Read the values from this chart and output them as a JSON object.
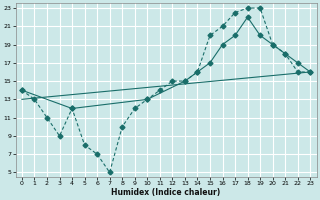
{
  "xlabel": "Humidex (Indice chaleur)",
  "bg_color": "#cce8e8",
  "grid_color": "#ffffff",
  "line_color": "#1a6e6a",
  "xlim": [
    -0.5,
    23.5
  ],
  "ylim": [
    4.5,
    23.5
  ],
  "xticks": [
    0,
    1,
    2,
    3,
    4,
    5,
    6,
    7,
    8,
    9,
    10,
    11,
    12,
    13,
    14,
    15,
    16,
    17,
    18,
    19,
    20,
    21,
    22,
    23
  ],
  "yticks": [
    5,
    7,
    9,
    11,
    13,
    15,
    17,
    19,
    21,
    23
  ],
  "curve1_x": [
    0,
    1,
    2,
    3,
    4,
    5,
    6,
    7,
    8,
    9,
    10,
    11,
    12,
    13,
    14,
    15,
    16,
    17,
    18,
    19,
    20,
    21,
    22,
    23
  ],
  "curve1_y": [
    14,
    13,
    11,
    9,
    12,
    8,
    7,
    5,
    10,
    12,
    13,
    14,
    15,
    15,
    16,
    20,
    21,
    22.5,
    23,
    23,
    19,
    18,
    16,
    16
  ],
  "curve2_x": [
    0,
    4,
    10,
    13,
    14,
    15,
    16,
    17,
    18,
    19,
    20,
    21,
    22,
    23
  ],
  "curve2_y": [
    14,
    12,
    13,
    15,
    16,
    17,
    19,
    20,
    22,
    20,
    19,
    18,
    17,
    16
  ],
  "curve3_x": [
    0,
    23
  ],
  "curve3_y": [
    13,
    16
  ]
}
